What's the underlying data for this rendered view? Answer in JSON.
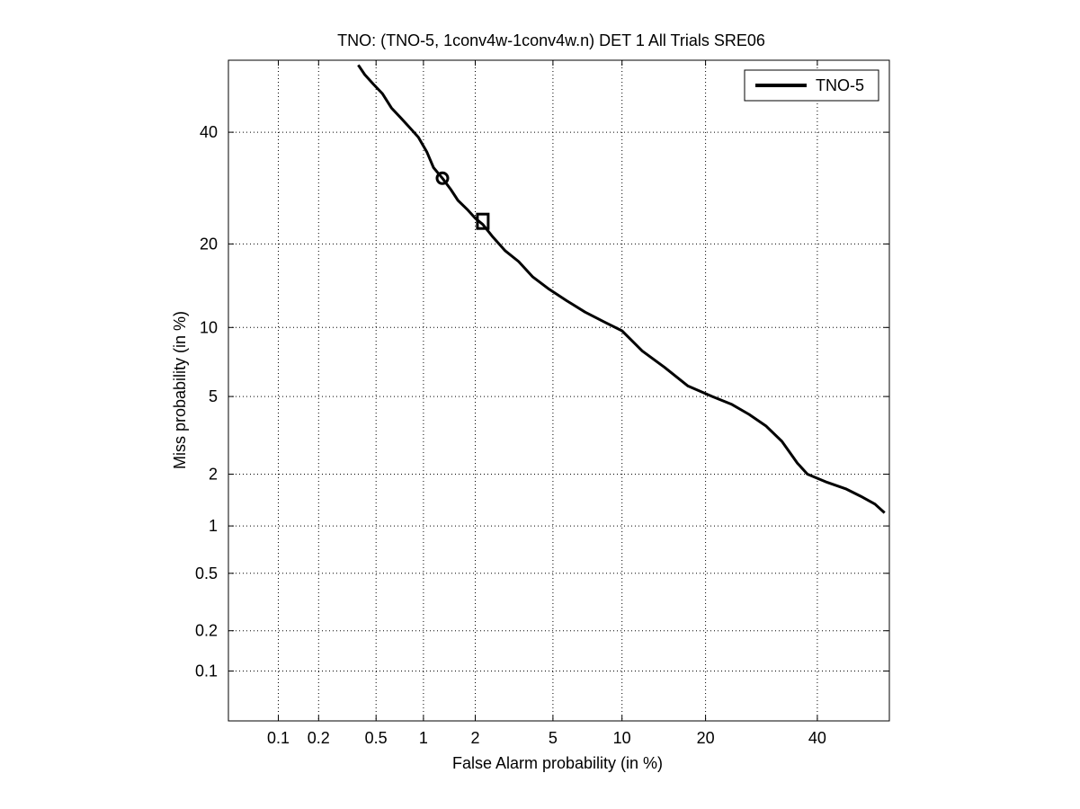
{
  "chart_data": {
    "type": "line",
    "title": "TNO: (TNO-5, 1conv4w-1conv4w.n) DET 1 All Trials SRE06",
    "xlabel": "False Alarm probability (in %)",
    "ylabel": "Miss probability (in %)",
    "x_scale": "normal-deviate (probit)",
    "y_scale": "normal-deviate (probit)",
    "xlim": [
      0.04,
      55
    ],
    "ylim": [
      0.04,
      55
    ],
    "x_ticks": [
      0.1,
      0.2,
      0.5,
      1,
      2,
      5,
      10,
      20,
      40
    ],
    "x_tick_labels": [
      "0.1",
      "0.2",
      "0.5",
      "1",
      "2",
      "5",
      "10",
      "20",
      "40"
    ],
    "y_ticks": [
      0.1,
      0.2,
      0.5,
      1,
      2,
      5,
      10,
      20,
      40
    ],
    "y_tick_labels": [
      "0.1",
      "0.2",
      "0.5",
      "1",
      "2",
      "5",
      "10",
      "20",
      "40"
    ],
    "grid": true,
    "legend_position": "top-right",
    "series": [
      {
        "name": "TNO-5",
        "color": "#000000",
        "x": [
          0.38,
          0.42,
          0.48,
          0.55,
          0.63,
          0.72,
          0.82,
          0.93,
          1.05,
          1.15,
          1.3,
          1.45,
          1.6,
          1.8,
          2.0,
          2.2,
          2.5,
          2.9,
          3.4,
          4.0,
          4.8,
          5.8,
          7.0,
          8.5,
          10.0,
          12.0,
          14.5,
          17.5,
          21.0,
          24.0,
          27.0,
          30.0,
          33.0,
          36.0,
          38.0,
          42.0,
          46.0,
          49.0,
          52.0,
          54.0
        ],
        "y": [
          54.0,
          52.0,
          50.0,
          48.0,
          45.0,
          43.0,
          41.0,
          39.0,
          36.0,
          33.0,
          31.0,
          29.0,
          27.0,
          25.5,
          24.0,
          23.0,
          21.0,
          19.0,
          17.5,
          15.5,
          14.0,
          12.7,
          11.5,
          10.5,
          9.7,
          8.0,
          6.8,
          5.6,
          5.0,
          4.6,
          4.1,
          3.6,
          3.0,
          2.3,
          2.0,
          1.8,
          1.65,
          1.5,
          1.35,
          1.2
        ]
      }
    ],
    "markers": [
      {
        "shape": "circle",
        "x": 1.3,
        "y": 31.0
      },
      {
        "shape": "square",
        "x": 2.2,
        "y": 23.5
      }
    ]
  }
}
